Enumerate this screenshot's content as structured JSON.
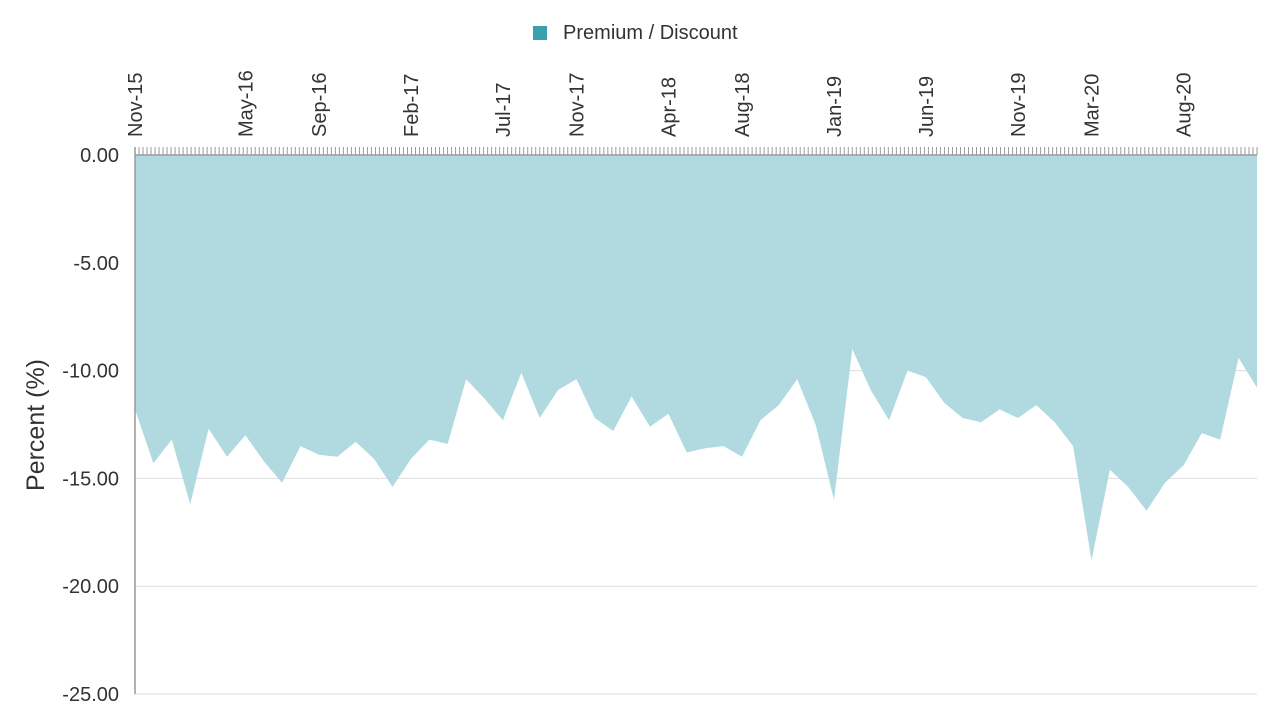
{
  "legend": {
    "label": "Premium / Discount",
    "color": "#3aa0ae"
  },
  "chart_data": {
    "type": "area",
    "title": "",
    "xlabel": "",
    "ylabel": "Percent (%)",
    "x_axis_position": "top",
    "ylim": [
      -25,
      0
    ],
    "yticks": [
      "0.00",
      "-5.00",
      "-10.00",
      "-15.00",
      "-20.00",
      "-25.00"
    ],
    "ytick_values": [
      0,
      -5,
      -10,
      -15,
      -20,
      -25
    ],
    "grid": true,
    "legend_position": "top-center",
    "fill_color": "#b0dae0",
    "x_range": [
      "2015-11",
      "2020-12"
    ],
    "xticks": [
      {
        "label": "Nov-15",
        "date": "2015-11"
      },
      {
        "label": "May-16",
        "date": "2016-05"
      },
      {
        "label": "Sep-16",
        "date": "2016-09"
      },
      {
        "label": "Feb-17",
        "date": "2017-02"
      },
      {
        "label": "Jul-17",
        "date": "2017-07"
      },
      {
        "label": "Nov-17",
        "date": "2017-11"
      },
      {
        "label": "Apr-18",
        "date": "2018-04"
      },
      {
        "label": "Aug-18",
        "date": "2018-08"
      },
      {
        "label": "Jan-19",
        "date": "2019-01"
      },
      {
        "label": "Jun-19",
        "date": "2019-06"
      },
      {
        "label": "Nov-19",
        "date": "2019-11"
      },
      {
        "label": "Mar-20",
        "date": "2020-03"
      },
      {
        "label": "Aug-20",
        "date": "2020-08"
      }
    ],
    "series": [
      {
        "name": "Premium / Discount",
        "points": [
          [
            "2015-11",
            -11.8
          ],
          [
            "2015-12",
            -14.3
          ],
          [
            "2016-01",
            -13.2
          ],
          [
            "2016-02",
            -16.2
          ],
          [
            "2016-03",
            -12.7
          ],
          [
            "2016-04",
            -14.0
          ],
          [
            "2016-05",
            -13.0
          ],
          [
            "2016-06",
            -14.2
          ],
          [
            "2016-07",
            -15.2
          ],
          [
            "2016-08",
            -13.5
          ],
          [
            "2016-09",
            -13.9
          ],
          [
            "2016-10",
            -14.0
          ],
          [
            "2016-11",
            -13.3
          ],
          [
            "2016-12",
            -14.1
          ],
          [
            "2017-01",
            -15.4
          ],
          [
            "2017-02",
            -14.1
          ],
          [
            "2017-03",
            -13.2
          ],
          [
            "2017-04",
            -13.4
          ],
          [
            "2017-05",
            -10.4
          ],
          [
            "2017-06",
            -11.3
          ],
          [
            "2017-07",
            -12.3
          ],
          [
            "2017-08",
            -10.1
          ],
          [
            "2017-09",
            -12.2
          ],
          [
            "2017-10",
            -10.9
          ],
          [
            "2017-11",
            -10.4
          ],
          [
            "2017-12",
            -12.2
          ],
          [
            "2018-01",
            -12.8
          ],
          [
            "2018-02",
            -11.2
          ],
          [
            "2018-03",
            -12.6
          ],
          [
            "2018-04",
            -12.0
          ],
          [
            "2018-05",
            -13.8
          ],
          [
            "2018-06",
            -13.6
          ],
          [
            "2018-07",
            -13.5
          ],
          [
            "2018-08",
            -14.0
          ],
          [
            "2018-09",
            -12.3
          ],
          [
            "2018-10",
            -11.6
          ],
          [
            "2018-11",
            -10.4
          ],
          [
            "2018-12",
            -12.5
          ],
          [
            "2019-01",
            -16.0
          ],
          [
            "2019-02",
            -9.0
          ],
          [
            "2019-03",
            -10.9
          ],
          [
            "2019-04",
            -12.3
          ],
          [
            "2019-05",
            -10.0
          ],
          [
            "2019-06",
            -10.3
          ],
          [
            "2019-07",
            -11.5
          ],
          [
            "2019-08",
            -12.2
          ],
          [
            "2019-09",
            -12.4
          ],
          [
            "2019-10",
            -11.8
          ],
          [
            "2019-11",
            -12.2
          ],
          [
            "2019-12",
            -11.6
          ],
          [
            "2020-01",
            -12.4
          ],
          [
            "2020-02",
            -13.5
          ],
          [
            "2020-03",
            -18.8
          ],
          [
            "2020-04",
            -14.6
          ],
          [
            "2020-05",
            -15.4
          ],
          [
            "2020-06",
            -16.5
          ],
          [
            "2020-07",
            -15.2
          ],
          [
            "2020-08",
            -14.4
          ],
          [
            "2020-09",
            -12.9
          ],
          [
            "2020-10",
            -13.2
          ],
          [
            "2020-11",
            -9.4
          ],
          [
            "2020-12",
            -10.8
          ]
        ]
      }
    ]
  }
}
